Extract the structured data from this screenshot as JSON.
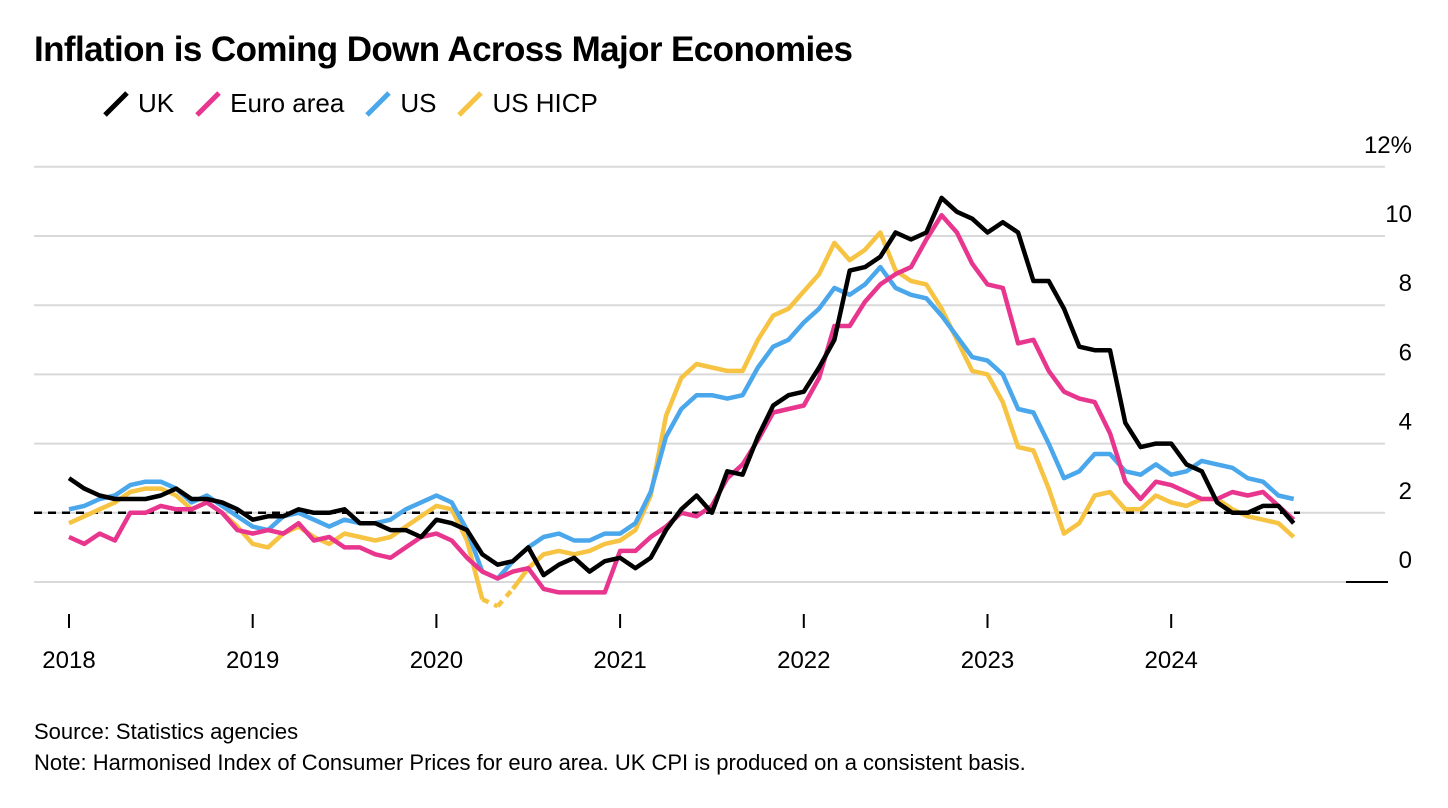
{
  "header": {
    "title": "Inflation is Coming Down Across Major Economies"
  },
  "footer": {
    "source": "Source: Statistics agencies",
    "note": "Note: Harmonised Index of Consumer Prices for euro area. UK CPI is produced on a consistent basis."
  },
  "colors": {
    "uk": "#000000",
    "euro_area": "#e8368f",
    "us": "#4aa7ec",
    "us_hicp": "#f6c342",
    "grid": "#d9d9d9",
    "target_line": "#000000"
  },
  "chart_data": {
    "type": "line",
    "title": "Inflation is Coming Down Across Major Economies",
    "xlabel": "",
    "ylabel": "",
    "ylim": [
      -1.5,
      12
    ],
    "grid": true,
    "legend_position": "top-left",
    "y_ticks": [
      {
        "value": 12,
        "label": "12%"
      },
      {
        "value": 10,
        "label": "10"
      },
      {
        "value": 8,
        "label": "8"
      },
      {
        "value": 6,
        "label": "6"
      },
      {
        "value": 4,
        "label": "4"
      },
      {
        "value": 2,
        "label": "2"
      },
      {
        "value": 0,
        "label": "0"
      }
    ],
    "x_ticks": [
      "2018",
      "2019",
      "2020",
      "2021",
      "2022",
      "2023",
      "2024"
    ],
    "x_start": "2018-01",
    "reference_line": {
      "value": 2,
      "style": "dashed"
    },
    "series": [
      {
        "name": "UK",
        "color_key": "uk",
        "start": "2018-01",
        "values": [
          3.0,
          2.7,
          2.5,
          2.4,
          2.4,
          2.4,
          2.5,
          2.7,
          2.4,
          2.4,
          2.3,
          2.1,
          1.8,
          1.9,
          1.9,
          2.1,
          2.0,
          2.0,
          2.1,
          1.7,
          1.7,
          1.5,
          1.5,
          1.3,
          1.8,
          1.7,
          1.5,
          0.8,
          0.5,
          0.6,
          1.0,
          0.2,
          0.5,
          0.7,
          0.3,
          0.6,
          0.7,
          0.4,
          0.7,
          1.5,
          2.1,
          2.5,
          2.0,
          3.2,
          3.1,
          4.2,
          5.1,
          5.4,
          5.5,
          6.2,
          7.0,
          9.0,
          9.1,
          9.4,
          10.1,
          9.9,
          10.1,
          11.1,
          10.7,
          10.5,
          10.1,
          10.4,
          10.1,
          8.7,
          8.7,
          7.9,
          6.8,
          6.7,
          6.7,
          4.6,
          3.9,
          4.0,
          4.0,
          3.4,
          3.2,
          2.3,
          2.0,
          2.0,
          2.2,
          2.2,
          1.7
        ]
      },
      {
        "name": "Euro area",
        "color_key": "euro_area",
        "start": "2018-01",
        "values": [
          1.3,
          1.1,
          1.4,
          1.2,
          2.0,
          2.0,
          2.2,
          2.1,
          2.1,
          2.3,
          2.0,
          1.5,
          1.4,
          1.5,
          1.4,
          1.7,
          1.2,
          1.3,
          1.0,
          1.0,
          0.8,
          0.7,
          1.0,
          1.3,
          1.4,
          1.2,
          0.7,
          0.3,
          0.1,
          0.3,
          0.4,
          -0.2,
          -0.3,
          -0.3,
          -0.3,
          -0.3,
          0.9,
          0.9,
          1.3,
          1.6,
          2.0,
          1.9,
          2.2,
          3.0,
          3.4,
          4.1,
          4.9,
          5.0,
          5.1,
          5.9,
          7.4,
          7.4,
          8.1,
          8.6,
          8.9,
          9.1,
          9.9,
          10.6,
          10.1,
          9.2,
          8.6,
          8.5,
          6.9,
          7.0,
          6.1,
          5.5,
          5.3,
          5.2,
          4.3,
          2.9,
          2.4,
          2.9,
          2.8,
          2.6,
          2.4,
          2.4,
          2.6,
          2.5,
          2.6,
          2.2,
          1.8
        ]
      },
      {
        "name": "US",
        "color_key": "us",
        "start": "2018-01",
        "values": [
          2.1,
          2.2,
          2.4,
          2.5,
          2.8,
          2.9,
          2.9,
          2.7,
          2.3,
          2.5,
          2.2,
          1.9,
          1.6,
          1.5,
          1.9,
          2.0,
          1.8,
          1.6,
          1.8,
          1.7,
          1.7,
          1.8,
          2.1,
          2.3,
          2.5,
          2.3,
          1.5,
          0.3,
          0.1,
          0.6,
          1.0,
          1.3,
          1.4,
          1.2,
          1.2,
          1.4,
          1.4,
          1.7,
          2.6,
          4.2,
          5.0,
          5.4,
          5.4,
          5.3,
          5.4,
          6.2,
          6.8,
          7.0,
          7.5,
          7.9,
          8.5,
          8.3,
          8.6,
          9.1,
          8.5,
          8.3,
          8.2,
          7.7,
          7.1,
          6.5,
          6.4,
          6.0,
          5.0,
          4.9,
          4.0,
          3.0,
          3.2,
          3.7,
          3.7,
          3.2,
          3.1,
          3.4,
          3.1,
          3.2,
          3.5,
          3.4,
          3.3,
          3.0,
          2.9,
          2.5,
          2.4
        ]
      },
      {
        "name": "US HICP",
        "color_key": "us_hicp",
        "start": "2018-01",
        "dashed_segments": [
          [
            27,
            29
          ]
        ],
        "values": [
          1.7,
          1.9,
          2.1,
          2.3,
          2.6,
          2.7,
          2.7,
          2.5,
          2.1,
          2.3,
          2.0,
          1.6,
          1.1,
          1.0,
          1.4,
          1.6,
          1.3,
          1.1,
          1.4,
          1.3,
          1.2,
          1.3,
          1.6,
          1.9,
          2.2,
          2.1,
          1.2,
          -0.5,
          -0.7,
          -0.2,
          0.4,
          0.8,
          0.9,
          0.8,
          0.9,
          1.1,
          1.2,
          1.5,
          2.5,
          4.8,
          5.9,
          6.3,
          6.2,
          6.1,
          6.1,
          7.0,
          7.7,
          7.9,
          8.4,
          8.9,
          9.8,
          9.3,
          9.6,
          10.1,
          9.0,
          8.7,
          8.6,
          7.9,
          7.0,
          6.1,
          6.0,
          5.2,
          3.9,
          3.8,
          2.7,
          1.4,
          1.7,
          2.5,
          2.6,
          2.1,
          2.1,
          2.5,
          2.3,
          2.2,
          2.4,
          2.4,
          2.1,
          1.9,
          1.8,
          1.7,
          1.3
        ]
      }
    ]
  }
}
